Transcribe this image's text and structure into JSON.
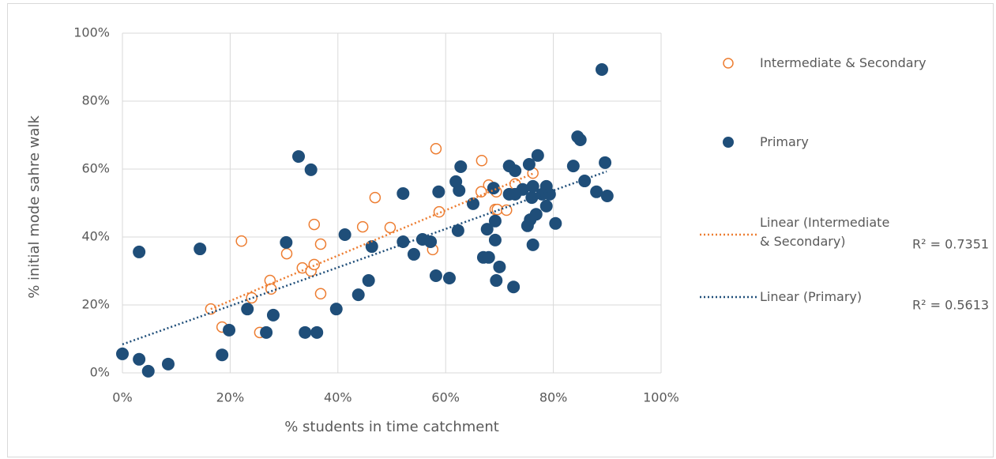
{
  "chart_data": {
    "type": "scatter",
    "xlabel": "% students in time catchment",
    "ylabel": "% initial mode sahre walk",
    "xlim": [
      0,
      100
    ],
    "ylim": [
      0,
      100
    ],
    "xticks": [
      {
        "value": 0,
        "label": "0%"
      },
      {
        "value": 20,
        "label": "20%"
      },
      {
        "value": 40,
        "label": "40%"
      },
      {
        "value": 60,
        "label": "60%"
      },
      {
        "value": 80,
        "label": "80%"
      },
      {
        "value": 100,
        "label": "100%"
      }
    ],
    "yticks": [
      {
        "value": 0,
        "label": "0%"
      },
      {
        "value": 20,
        "label": "20%"
      },
      {
        "value": 40,
        "label": "40%"
      },
      {
        "value": 60,
        "label": "60%"
      },
      {
        "value": 80,
        "label": "80%"
      },
      {
        "value": 100,
        "label": "100%"
      }
    ],
    "grid": true,
    "series": [
      {
        "name": "Intermediate & Secondary",
        "color": "#ED7D31",
        "marker": "open",
        "x": [
          16.4,
          18.5,
          22.1,
          24.0,
          25.5,
          27.4,
          27.6,
          30.5,
          33.4,
          35.0,
          35.6,
          35.6,
          36.8,
          36.8,
          44.6,
          46.9,
          49.7,
          57.6,
          58.2,
          58.8,
          66.7,
          68.0,
          69.4,
          66.6,
          69.2,
          69.6,
          71.3,
          72.9,
          76.2
        ],
        "values": [
          18.8,
          13.5,
          38.8,
          22.1,
          11.9,
          27.2,
          24.7,
          35.1,
          30.9,
          30.0,
          31.9,
          43.7,
          37.9,
          23.3,
          43.0,
          51.6,
          42.8,
          36.3,
          66.0,
          47.4,
          62.5,
          55.3,
          53.3,
          53.3,
          48.1,
          48.1,
          47.9,
          55.6,
          58.8
        ]
      },
      {
        "name": "Primary",
        "color": "#1F4E79",
        "marker": "filled",
        "x": [
          0,
          3.1,
          3.1,
          4.8,
          8.5,
          14.4,
          18.5,
          19.8,
          23.2,
          26.7,
          28.0,
          30.4,
          32.7,
          33.9,
          35.0,
          36.1,
          39.7,
          41.3,
          43.8,
          45.7,
          46.3,
          52.1,
          52.1,
          54.1,
          55.7,
          57.2,
          58.2,
          58.7,
          60.7,
          61.9,
          62.5,
          62.8,
          62.3,
          65.1,
          67.0,
          68.0,
          67.7,
          68.9,
          69.2,
          69.4,
          70.0,
          69.2,
          71.8,
          71.8,
          72.6,
          72.9,
          72.9,
          74.3,
          75.2,
          75.5,
          75.7,
          76.0,
          76.2,
          76.2,
          76.8,
          77.1,
          77.9,
          78.7,
          78.7,
          79.3,
          80.4,
          83.7,
          84.5,
          85.0,
          85.8,
          88.0,
          89.0,
          89.6,
          90.0
        ],
        "values": [
          5.6,
          4.0,
          35.6,
          0.5,
          2.6,
          36.5,
          5.3,
          12.6,
          18.8,
          11.9,
          17.0,
          38.4,
          63.7,
          11.9,
          59.8,
          11.9,
          18.8,
          40.7,
          23.0,
          27.2,
          37.2,
          52.8,
          38.6,
          34.9,
          39.3,
          38.6,
          28.6,
          53.3,
          27.9,
          56.3,
          53.7,
          60.7,
          41.9,
          49.8,
          34.0,
          34.0,
          42.3,
          54.4,
          39.1,
          27.2,
          31.2,
          44.7,
          60.9,
          52.6,
          25.3,
          52.6,
          59.5,
          54.0,
          43.3,
          61.4,
          45.1,
          51.6,
          37.7,
          54.9,
          46.7,
          64.0,
          52.6,
          54.9,
          49.1,
          52.6,
          44.0,
          60.9,
          69.5,
          68.6,
          56.5,
          53.3,
          89.3,
          61.9,
          52.1
        ]
      }
    ],
    "trendlines": [
      {
        "name": "Linear (Intermediate & Secondary)",
        "color": "#ED7D31",
        "x": [
          16.4,
          76.4
        ],
        "values": [
          18.8,
          58.8
        ],
        "r2_label": "R² = 0.7351"
      },
      {
        "name": "Linear (Primary)",
        "color": "#1F4E79",
        "x": [
          0,
          89.9
        ],
        "values": [
          8.4,
          59.3
        ],
        "r2_label": "R² = 0.5613"
      }
    ]
  }
}
